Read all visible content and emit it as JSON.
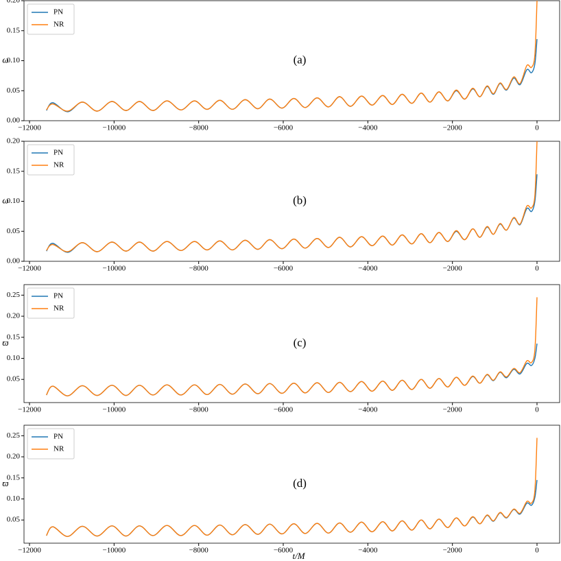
{
  "chart_data": [
    {
      "type": "line",
      "annotation": "(a)",
      "ylabel": "ω",
      "x": [
        -11600,
        -11450,
        -11100,
        -10750,
        -10400,
        -10050,
        -9720,
        -9400,
        -9080,
        -8750,
        -8420,
        -8100,
        -7800,
        -7500,
        -7200,
        -6900,
        -6600,
        -6320,
        -6030,
        -5750,
        -5480,
        -5200,
        -4930,
        -4670,
        -4410,
        -4150,
        -3900,
        -3650,
        -3420,
        -3190,
        -2960,
        -2740,
        -2530,
        -2320,
        -2110,
        -1910,
        -1710,
        -1520,
        -1350,
        -1180,
        -1030,
        -875,
        -720,
        -550,
        -400,
        -240,
        -130,
        -50,
        0
      ],
      "series": [
        {
          "name": "PN",
          "color": "#1f77b4",
          "values": [
            0.017,
            0.03,
            0.015,
            0.031,
            0.016,
            0.032,
            0.017,
            0.032,
            0.017,
            0.033,
            0.018,
            0.033,
            0.019,
            0.034,
            0.019,
            0.035,
            0.02,
            0.036,
            0.021,
            0.037,
            0.022,
            0.038,
            0.023,
            0.04,
            0.024,
            0.041,
            0.026,
            0.042,
            0.027,
            0.044,
            0.029,
            0.046,
            0.031,
            0.048,
            0.033,
            0.05,
            0.036,
            0.053,
            0.04,
            0.057,
            0.044,
            0.062,
            0.051,
            0.071,
            0.06,
            0.085,
            0.08,
            0.095,
            0.136
          ]
        },
        {
          "name": "NR",
          "color": "#ff7f0e",
          "values": [
            0.018,
            0.028,
            0.016,
            0.031,
            0.016,
            0.032,
            0.017,
            0.032,
            0.017,
            0.033,
            0.018,
            0.033,
            0.019,
            0.034,
            0.019,
            0.035,
            0.02,
            0.036,
            0.021,
            0.037,
            0.022,
            0.038,
            0.023,
            0.04,
            0.024,
            0.041,
            0.026,
            0.042,
            0.027,
            0.044,
            0.029,
            0.046,
            0.031,
            0.048,
            0.033,
            0.051,
            0.036,
            0.054,
            0.04,
            0.058,
            0.045,
            0.063,
            0.052,
            0.073,
            0.062,
            0.092,
            0.089,
            0.11,
            0.2
          ]
        }
      ],
      "xlim": [
        -12130,
        535
      ],
      "xticks": [
        {
          "value": -12000,
          "label": "−12000"
        },
        {
          "value": -10000,
          "label": "−10000"
        },
        {
          "value": -8000,
          "label": "−8000"
        },
        {
          "value": -6000,
          "label": "−6000"
        },
        {
          "value": -4000,
          "label": "−4000"
        },
        {
          "value": -2000,
          "label": "−2000"
        },
        0
      ],
      "ylim": [
        0,
        0.2
      ],
      "yticks": [
        {
          "value": 0,
          "label": "0.00"
        },
        {
          "value": 0.05,
          "label": "0.05"
        },
        {
          "value": 0.1,
          "label": "0.10"
        },
        {
          "value": 0.15,
          "label": "0.15"
        },
        {
          "value": 0.2,
          "label": "0.20"
        }
      ],
      "legend": "upper left"
    },
    {
      "type": "line",
      "annotation": "(b)",
      "ylabel": "ω",
      "x": [
        -11600,
        -11450,
        -11100,
        -10750,
        -10400,
        -10050,
        -9720,
        -9400,
        -9080,
        -8750,
        -8420,
        -8100,
        -7800,
        -7500,
        -7200,
        -6900,
        -6600,
        -6320,
        -6030,
        -5750,
        -5480,
        -5200,
        -4930,
        -4670,
        -4410,
        -4150,
        -3900,
        -3650,
        -3420,
        -3190,
        -2960,
        -2740,
        -2530,
        -2320,
        -2110,
        -1910,
        -1710,
        -1520,
        -1350,
        -1180,
        -1030,
        -875,
        -720,
        -550,
        -400,
        -240,
        -130,
        -50,
        0
      ],
      "series": [
        {
          "name": "PN",
          "color": "#1f77b4",
          "values": [
            0.017,
            0.03,
            0.015,
            0.031,
            0.016,
            0.032,
            0.017,
            0.032,
            0.017,
            0.033,
            0.018,
            0.033,
            0.019,
            0.034,
            0.019,
            0.035,
            0.02,
            0.036,
            0.021,
            0.037,
            0.022,
            0.038,
            0.023,
            0.04,
            0.024,
            0.041,
            0.026,
            0.042,
            0.027,
            0.044,
            0.029,
            0.046,
            0.031,
            0.048,
            0.033,
            0.05,
            0.036,
            0.054,
            0.04,
            0.057,
            0.045,
            0.062,
            0.052,
            0.072,
            0.061,
            0.088,
            0.083,
            0.1,
            0.145
          ]
        },
        {
          "name": "NR",
          "color": "#ff7f0e",
          "values": [
            0.018,
            0.028,
            0.016,
            0.031,
            0.016,
            0.032,
            0.017,
            0.032,
            0.017,
            0.033,
            0.018,
            0.033,
            0.019,
            0.034,
            0.019,
            0.035,
            0.02,
            0.036,
            0.021,
            0.037,
            0.022,
            0.038,
            0.023,
            0.04,
            0.024,
            0.041,
            0.026,
            0.042,
            0.027,
            0.044,
            0.029,
            0.046,
            0.031,
            0.048,
            0.033,
            0.051,
            0.036,
            0.054,
            0.04,
            0.058,
            0.045,
            0.063,
            0.052,
            0.073,
            0.062,
            0.092,
            0.089,
            0.11,
            0.2
          ]
        }
      ],
      "xlim": [
        -12130,
        535
      ],
      "xticks": [
        {
          "value": -12000,
          "label": "−12000"
        },
        {
          "value": -10000,
          "label": "−10000"
        },
        {
          "value": -8000,
          "label": "−8000"
        },
        {
          "value": -6000,
          "label": "−6000"
        },
        {
          "value": -4000,
          "label": "−4000"
        },
        {
          "value": -2000,
          "label": "−2000"
        },
        0
      ],
      "ylim": [
        0,
        0.2
      ],
      "yticks": [
        {
          "value": 0,
          "label": "0.00"
        },
        {
          "value": 0.05,
          "label": "0.05"
        },
        {
          "value": 0.1,
          "label": "0.10"
        },
        {
          "value": 0.15,
          "label": "0.15"
        },
        {
          "value": 0.2,
          "label": "0.20"
        }
      ],
      "legend": "upper left"
    },
    {
      "type": "line",
      "annotation": "(c)",
      "ylabel": "ϖ",
      "x": [
        -11600,
        -11450,
        -11100,
        -10750,
        -10400,
        -10050,
        -9720,
        -9400,
        -9080,
        -8750,
        -8420,
        -8100,
        -7800,
        -7500,
        -7200,
        -6900,
        -6600,
        -6320,
        -6030,
        -5750,
        -5480,
        -5200,
        -4930,
        -4670,
        -4410,
        -4150,
        -3900,
        -3650,
        -3420,
        -3190,
        -2960,
        -2740,
        -2530,
        -2320,
        -2110,
        -1910,
        -1710,
        -1520,
        -1350,
        -1180,
        -1030,
        -875,
        -720,
        -550,
        -400,
        -240,
        -130,
        -50,
        0
      ],
      "series": [
        {
          "name": "PN",
          "color": "#1f77b4",
          "values": [
            0.013,
            0.034,
            0.011,
            0.035,
            0.012,
            0.036,
            0.012,
            0.036,
            0.013,
            0.037,
            0.013,
            0.037,
            0.014,
            0.038,
            0.015,
            0.039,
            0.016,
            0.04,
            0.017,
            0.041,
            0.018,
            0.042,
            0.019,
            0.043,
            0.021,
            0.045,
            0.022,
            0.046,
            0.024,
            0.048,
            0.026,
            0.05,
            0.029,
            0.052,
            0.032,
            0.055,
            0.036,
            0.057,
            0.041,
            0.061,
            0.047,
            0.067,
            0.054,
            0.074,
            0.063,
            0.088,
            0.083,
            0.1,
            0.135
          ]
        },
        {
          "name": "NR",
          "color": "#ff7f0e",
          "values": [
            0.013,
            0.034,
            0.011,
            0.035,
            0.012,
            0.036,
            0.012,
            0.036,
            0.013,
            0.037,
            0.013,
            0.037,
            0.014,
            0.038,
            0.015,
            0.039,
            0.016,
            0.04,
            0.017,
            0.041,
            0.018,
            0.042,
            0.019,
            0.043,
            0.021,
            0.045,
            0.022,
            0.046,
            0.024,
            0.048,
            0.026,
            0.05,
            0.029,
            0.052,
            0.032,
            0.055,
            0.036,
            0.058,
            0.041,
            0.062,
            0.048,
            0.068,
            0.056,
            0.076,
            0.066,
            0.094,
            0.09,
            0.12,
            0.245
          ]
        }
      ],
      "xlim": [
        -12130,
        535
      ],
      "xticks": [
        {
          "value": -12000,
          "label": "−12000"
        },
        {
          "value": -10000,
          "label": "−10000"
        },
        {
          "value": -8000,
          "label": "−8000"
        },
        {
          "value": -6000,
          "label": "−6000"
        },
        {
          "value": -4000,
          "label": "−4000"
        },
        {
          "value": -2000,
          "label": "−2000"
        },
        0
      ],
      "ylim": [
        -0.005,
        0.275
      ],
      "yticks": [
        {
          "value": 0.05,
          "label": "0.05"
        },
        {
          "value": 0.1,
          "label": "0.10"
        },
        {
          "value": 0.15,
          "label": "0.15"
        },
        {
          "value": 0.2,
          "label": "0.20"
        },
        {
          "value": 0.25,
          "label": "0.25"
        }
      ],
      "legend": "upper left"
    },
    {
      "type": "line",
      "annotation": "(d)",
      "ylabel": "ϖ",
      "xlabel": "t/M",
      "x": [
        -11600,
        -11450,
        -11100,
        -10750,
        -10400,
        -10050,
        -9720,
        -9400,
        -9080,
        -8750,
        -8420,
        -8100,
        -7800,
        -7500,
        -7200,
        -6900,
        -6600,
        -6320,
        -6030,
        -5750,
        -5480,
        -5200,
        -4930,
        -4670,
        -4410,
        -4150,
        -3900,
        -3650,
        -3420,
        -3190,
        -2960,
        -2740,
        -2530,
        -2320,
        -2110,
        -1910,
        -1710,
        -1520,
        -1350,
        -1180,
        -1030,
        -875,
        -720,
        -550,
        -400,
        -240,
        -130,
        -50,
        0
      ],
      "series": [
        {
          "name": "PN",
          "color": "#1f77b4",
          "values": [
            0.013,
            0.034,
            0.011,
            0.035,
            0.012,
            0.036,
            0.012,
            0.036,
            0.013,
            0.037,
            0.013,
            0.037,
            0.014,
            0.038,
            0.015,
            0.039,
            0.016,
            0.04,
            0.017,
            0.041,
            0.018,
            0.042,
            0.019,
            0.043,
            0.021,
            0.045,
            0.022,
            0.046,
            0.024,
            0.048,
            0.026,
            0.05,
            0.029,
            0.052,
            0.032,
            0.055,
            0.036,
            0.057,
            0.041,
            0.061,
            0.047,
            0.067,
            0.055,
            0.075,
            0.064,
            0.09,
            0.085,
            0.104,
            0.145
          ]
        },
        {
          "name": "NR",
          "color": "#ff7f0e",
          "values": [
            0.013,
            0.034,
            0.011,
            0.035,
            0.012,
            0.036,
            0.012,
            0.036,
            0.013,
            0.037,
            0.013,
            0.037,
            0.014,
            0.038,
            0.015,
            0.039,
            0.016,
            0.04,
            0.017,
            0.041,
            0.018,
            0.042,
            0.019,
            0.043,
            0.021,
            0.045,
            0.022,
            0.046,
            0.024,
            0.048,
            0.026,
            0.05,
            0.029,
            0.052,
            0.032,
            0.055,
            0.036,
            0.058,
            0.041,
            0.062,
            0.048,
            0.068,
            0.056,
            0.076,
            0.066,
            0.094,
            0.09,
            0.12,
            0.245
          ]
        }
      ],
      "xlim": [
        -12130,
        535
      ],
      "xticks": [
        {
          "value": -12000,
          "label": "−12000"
        },
        {
          "value": -10000,
          "label": "−10000"
        },
        {
          "value": -8000,
          "label": "−8000"
        },
        {
          "value": -6000,
          "label": "−6000"
        },
        {
          "value": -4000,
          "label": "−4000"
        },
        {
          "value": -2000,
          "label": "−2000"
        },
        0
      ],
      "ylim": [
        -0.005,
        0.275
      ],
      "yticks": [
        {
          "value": 0.05,
          "label": "0.05"
        },
        {
          "value": 0.1,
          "label": "0.10"
        },
        {
          "value": 0.15,
          "label": "0.15"
        },
        {
          "value": 0.2,
          "label": "0.20"
        },
        {
          "value": 0.25,
          "label": "0.25"
        }
      ],
      "legend": "upper left"
    }
  ]
}
